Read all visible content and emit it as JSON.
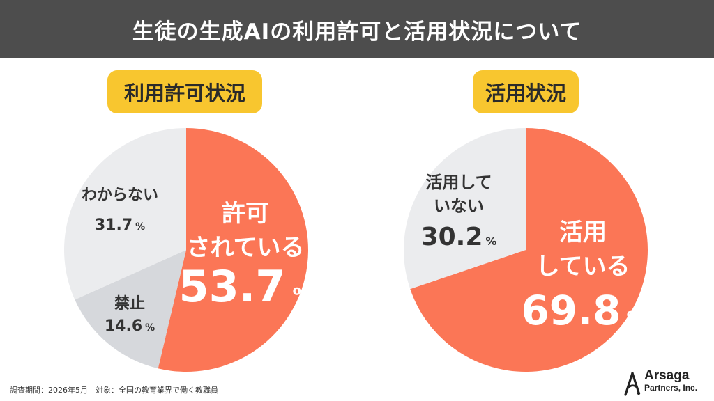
{
  "header": {
    "title": "生徒の生成AIの利用許可と活用状況について"
  },
  "chart_data": [
    {
      "type": "pie",
      "title": "利用許可状況",
      "slices": [
        {
          "label": "許可されている",
          "value": 53.7,
          "color": "#fb7656",
          "label_lines": [
            "許可",
            "されている"
          ],
          "value_text": "53.7",
          "unit": "%"
        },
        {
          "label": "禁止",
          "value": 14.6,
          "color": "#d6d8dc",
          "label_lines": [
            "禁止"
          ],
          "value_text": "14.6",
          "unit": "%"
        },
        {
          "label": "わからない",
          "value": 31.7,
          "color": "#ebecee",
          "label_lines": [
            "わからない"
          ],
          "value_text": "31.7",
          "unit": "%"
        }
      ]
    },
    {
      "type": "pie",
      "title": "活用状況",
      "slices": [
        {
          "label": "活用している",
          "value": 69.8,
          "color": "#fb7656",
          "label_lines": [
            "活用",
            "している"
          ],
          "value_text": "69.8",
          "unit": "%"
        },
        {
          "label": "活用していない",
          "value": 30.2,
          "color": "#ebecee",
          "label_lines": [
            "活用して",
            "いない"
          ],
          "value_text": "30.2",
          "unit": "%"
        }
      ]
    }
  ],
  "footer": {
    "note": "調査期間：2026年5月　対象：全国の教育業界で働く教職員"
  },
  "logo": {
    "name": "Arsaga",
    "sub": "Partners, Inc.",
    "icon": "arsaga-logo-icon"
  }
}
